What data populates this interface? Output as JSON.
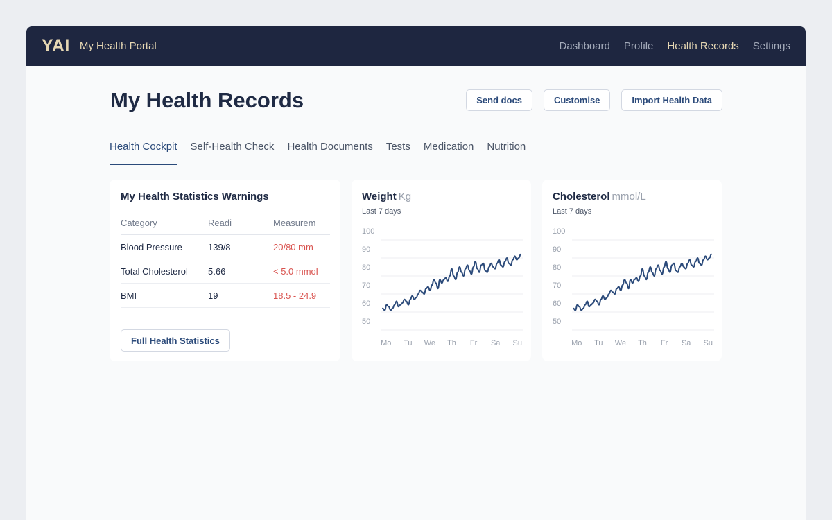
{
  "header": {
    "logo": "YAI",
    "app_title": "My Health Portal",
    "nav": [
      {
        "label": "Dashboard",
        "active": false
      },
      {
        "label": "Profile",
        "active": false
      },
      {
        "label": "Health Records",
        "active": true
      },
      {
        "label": "Settings",
        "active": false
      }
    ]
  },
  "page": {
    "title": "My Health Records",
    "actions": [
      "Send docs",
      "Customise",
      "Import Health Data"
    ]
  },
  "tabs": [
    {
      "label": "Health Cockpit",
      "active": true
    },
    {
      "label": "Self-Health Check",
      "active": false
    },
    {
      "label": "Health Documents",
      "active": false
    },
    {
      "label": "Tests",
      "active": false
    },
    {
      "label": "Medication",
      "active": false
    },
    {
      "label": "Nutrition",
      "active": false
    }
  ],
  "warnings": {
    "title": "My Health Statistics Warnings",
    "headers": [
      "Category",
      "Readi",
      "Measurem"
    ],
    "rows": [
      [
        "Blood Pressure",
        "139/8",
        "20/80 mm"
      ],
      [
        "Total Cholesterol",
        "5.66",
        "< 5.0 mmol"
      ],
      [
        "BMI",
        "19",
        "18.5 - 24.9"
      ]
    ],
    "button": "Full Health Statistics"
  },
  "colors": {
    "navbar": "#1e2640",
    "accent": "#2b4a7a",
    "brand": "#e6d7b3",
    "warning": "#d9534f"
  },
  "chart_data": [
    {
      "type": "line",
      "title": "Weight",
      "unit": "Kg",
      "subtitle": "Last 7 days",
      "categories": [
        "Mo",
        "Tu",
        "We",
        "Th",
        "Fr",
        "Sa",
        "Su"
      ],
      "yticks": [
        100,
        90,
        80,
        70,
        60,
        50
      ],
      "ylim": [
        50,
        100
      ],
      "grid": true,
      "x": [
        0.0,
        0.1,
        0.2,
        0.3,
        0.4,
        0.5,
        0.6,
        0.7,
        0.8,
        0.9,
        1.0,
        1.1,
        1.2,
        1.3,
        1.4,
        1.5,
        1.6,
        1.7,
        1.8,
        1.9,
        2.0,
        2.1,
        2.2,
        2.3,
        2.4,
        2.5,
        2.6,
        2.7,
        2.8,
        2.9,
        3.0,
        3.1,
        3.2,
        3.3,
        3.4,
        3.5,
        3.6,
        3.7,
        3.8,
        3.9,
        4.0,
        4.1,
        4.2,
        4.3,
        4.4,
        4.5,
        4.6,
        4.7,
        4.8,
        4.9,
        5.0,
        5.1,
        5.2,
        5.3,
        5.4,
        5.5,
        5.6,
        5.7,
        5.8,
        5.9,
        6.0,
        6.1,
        6.2,
        6.3,
        6.4,
        6.5,
        6.6,
        6.7,
        6.8,
        6.9,
        7.0
      ],
      "values": [
        62,
        61,
        64,
        63,
        61,
        62,
        64,
        66,
        63,
        64,
        65,
        67,
        66,
        64,
        67,
        69,
        67,
        68,
        70,
        72,
        71,
        70,
        73,
        74,
        72,
        75,
        78,
        76,
        73,
        78,
        76,
        78,
        79,
        77,
        80,
        84,
        80,
        78,
        82,
        85,
        82,
        80,
        84,
        86,
        83,
        81,
        85,
        88,
        84,
        82,
        86,
        87,
        83,
        82,
        85,
        87,
        85,
        84,
        87,
        89,
        86,
        85,
        88,
        90,
        87,
        86,
        89,
        91,
        89,
        90,
        92
      ]
    },
    {
      "type": "line",
      "title": "Cholesterol",
      "unit": "mmol/L",
      "subtitle": "Last 7 days",
      "categories": [
        "Mo",
        "Tu",
        "We",
        "Th",
        "Fr",
        "Sa",
        "Su"
      ],
      "yticks": [
        100,
        90,
        80,
        70,
        60,
        50
      ],
      "ylim": [
        50,
        100
      ],
      "grid": true,
      "x": [
        0.0,
        0.1,
        0.2,
        0.3,
        0.4,
        0.5,
        0.6,
        0.7,
        0.8,
        0.9,
        1.0,
        1.1,
        1.2,
        1.3,
        1.4,
        1.5,
        1.6,
        1.7,
        1.8,
        1.9,
        2.0,
        2.1,
        2.2,
        2.3,
        2.4,
        2.5,
        2.6,
        2.7,
        2.8,
        2.9,
        3.0,
        3.1,
        3.2,
        3.3,
        3.4,
        3.5,
        3.6,
        3.7,
        3.8,
        3.9,
        4.0,
        4.1,
        4.2,
        4.3,
        4.4,
        4.5,
        4.6,
        4.7,
        4.8,
        4.9,
        5.0,
        5.1,
        5.2,
        5.3,
        5.4,
        5.5,
        5.6,
        5.7,
        5.8,
        5.9,
        6.0,
        6.1,
        6.2,
        6.3,
        6.4,
        6.5,
        6.6,
        6.7,
        6.8,
        6.9,
        7.0
      ],
      "values": [
        62,
        61,
        64,
        63,
        61,
        62,
        64,
        66,
        63,
        64,
        65,
        67,
        66,
        64,
        67,
        69,
        67,
        68,
        70,
        72,
        71,
        70,
        73,
        74,
        72,
        75,
        78,
        76,
        73,
        78,
        76,
        78,
        79,
        77,
        80,
        84,
        80,
        78,
        82,
        85,
        82,
        80,
        84,
        86,
        83,
        81,
        85,
        88,
        84,
        82,
        86,
        87,
        83,
        82,
        85,
        87,
        85,
        84,
        87,
        89,
        86,
        85,
        88,
        90,
        87,
        86,
        89,
        91,
        89,
        90,
        92
      ]
    }
  ]
}
